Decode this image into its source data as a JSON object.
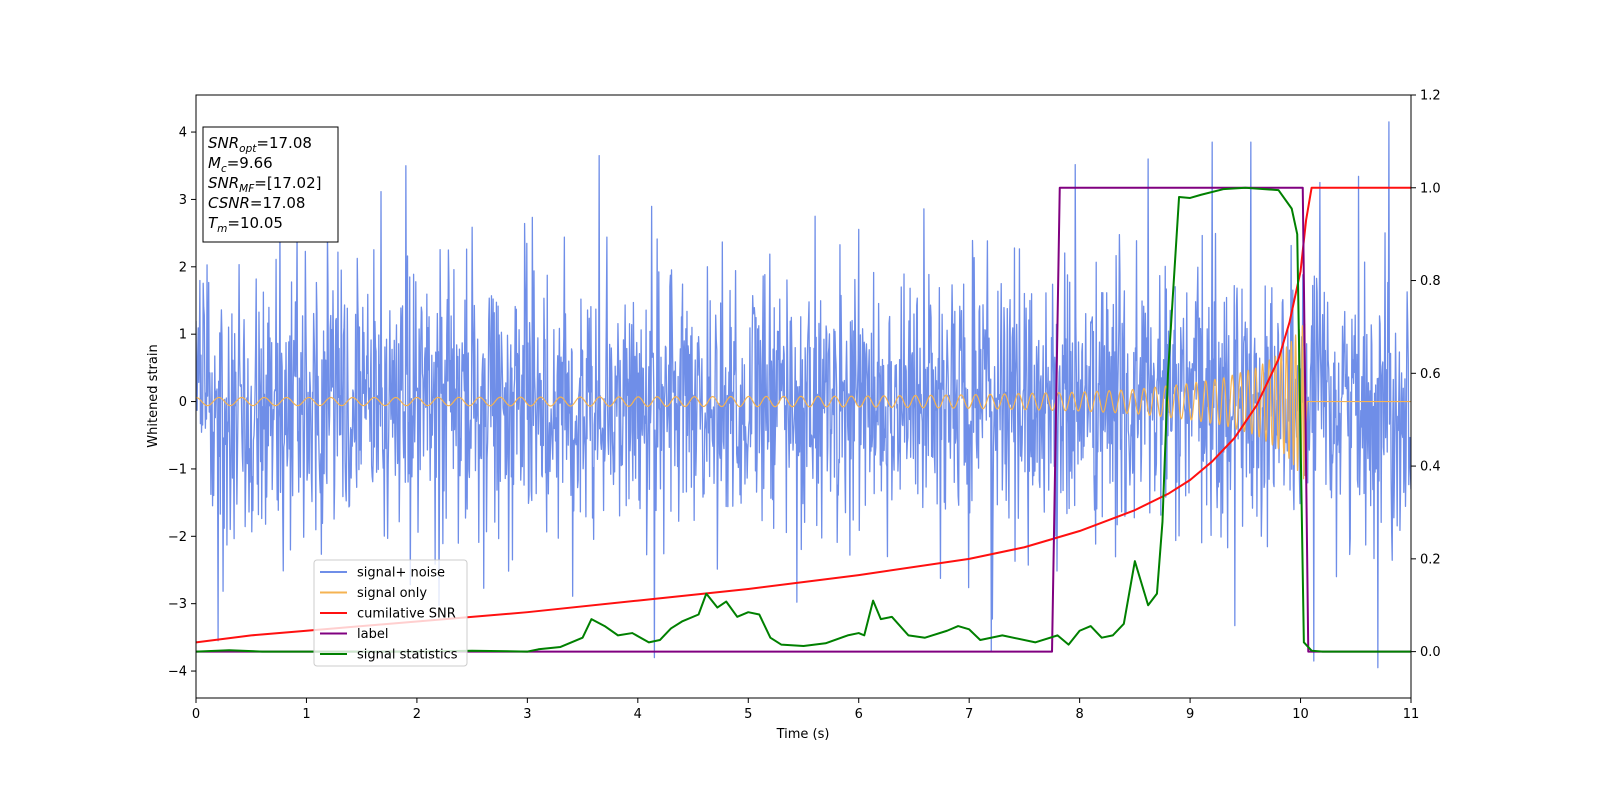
{
  "chart_data": {
    "type": "line",
    "xlabel": "Time (s)",
    "ylabel": "Whitened strain",
    "xlim": [
      0,
      11
    ],
    "ylim": [
      -4.4,
      4.55
    ],
    "ylim_right": [
      -0.1,
      1.2
    ],
    "xticks": [
      0,
      1,
      2,
      3,
      4,
      5,
      6,
      7,
      8,
      9,
      10,
      11
    ],
    "yticks": [
      -4,
      -3,
      -2,
      -1,
      0,
      1,
      2,
      3,
      4
    ],
    "yticks_right": [
      0.0,
      0.2,
      0.4,
      0.6,
      0.8,
      1.0,
      1.2
    ],
    "grid": false,
    "legend_placement": "lower-left",
    "annotation_box": {
      "placement": "upper-left",
      "lines": [
        {
          "main": "SNR",
          "sub": "opt",
          "value": "=17.08"
        },
        {
          "main": "M",
          "sub": "c",
          "value": "=9.66"
        },
        {
          "main": "SNR",
          "sub": "MF",
          "value": "=[17.02]"
        },
        {
          "main": "CSNR",
          "sub": "",
          "value": "=17.08"
        },
        {
          "main": "T",
          "sub": "m",
          "value": "=10.05"
        }
      ]
    },
    "series": [
      {
        "name": "signal+ noise",
        "color": "#6f8ee8",
        "axis": "left",
        "kind": "noise",
        "sample_rate_hz": 200,
        "x_range": [
          0,
          11
        ],
        "noise_std": 1.0,
        "extremes": [
          {
            "x": 4.15,
            "y": -3.8
          },
          {
            "x": 10.8,
            "y": 4.15
          },
          {
            "x": 10.7,
            "y": -3.95
          },
          {
            "x": 1.9,
            "y": 3.5
          },
          {
            "x": 3.65,
            "y": 3.65
          },
          {
            "x": 9.55,
            "y": 3.85
          },
          {
            "x": 9.2,
            "y": 3.85
          },
          {
            "x": 10.12,
            "y": -3.85
          },
          {
            "x": 0.2,
            "y": -3.55
          },
          {
            "x": 7.2,
            "y": -3.7
          },
          {
            "x": 8.62,
            "y": 3.6
          }
        ]
      },
      {
        "name": "signal only",
        "color": "#f5b352",
        "axis": "left",
        "kind": "chirp",
        "x_range": [
          0,
          11
        ],
        "coalescence_time": 10.05,
        "start_frequency_hz": 4.8,
        "amplitude_points": {
          "x": [
            0,
            2,
            4,
            6,
            7,
            8,
            8.5,
            9,
            9.3,
            9.6,
            9.8,
            9.9,
            10.0,
            10.05,
            10.06,
            11
          ],
          "y": [
            0.06,
            0.06,
            0.07,
            0.08,
            0.1,
            0.14,
            0.18,
            0.27,
            0.35,
            0.5,
            0.7,
            0.85,
            1.1,
            1.2,
            0,
            0
          ]
        }
      },
      {
        "name": "cumilative SNR",
        "color": "#ff1010",
        "axis": "right",
        "x": [
          0,
          0.5,
          1,
          2,
          3,
          4,
          5,
          6,
          7,
          7.5,
          8,
          8.5,
          8.8,
          9.0,
          9.2,
          9.4,
          9.6,
          9.8,
          9.9,
          10.0,
          10.05,
          10.1,
          11
        ],
        "y": [
          0.02,
          0.035,
          0.045,
          0.065,
          0.085,
          0.11,
          0.135,
          0.165,
          0.2,
          0.225,
          0.26,
          0.305,
          0.34,
          0.37,
          0.41,
          0.46,
          0.53,
          0.63,
          0.71,
          0.82,
          0.93,
          1.0,
          1.0
        ]
      },
      {
        "name": "label",
        "color": "#800080",
        "axis": "right",
        "x": [
          0,
          7.75,
          7.82,
          10.02,
          10.07,
          11
        ],
        "y": [
          0,
          0,
          1.0,
          1.0,
          0,
          0
        ]
      },
      {
        "name": "signal statistics",
        "color": "#008000",
        "axis": "right",
        "x": [
          0,
          0.3,
          0.6,
          1,
          2,
          2.5,
          3,
          3.1,
          3.3,
          3.5,
          3.58,
          3.7,
          3.82,
          3.95,
          4.1,
          4.2,
          4.3,
          4.4,
          4.55,
          4.62,
          4.72,
          4.8,
          4.9,
          5.0,
          5.1,
          5.2,
          5.3,
          5.5,
          5.7,
          5.9,
          6.0,
          6.05,
          6.13,
          6.2,
          6.3,
          6.45,
          6.6,
          6.8,
          6.9,
          7.0,
          7.1,
          7.3,
          7.6,
          7.8,
          7.9,
          8.0,
          8.1,
          8.2,
          8.3,
          8.4,
          8.5,
          8.62,
          8.7,
          8.75,
          8.8,
          8.9,
          9.0,
          9.1,
          9.3,
          9.5,
          9.8,
          9.92,
          9.97,
          10.03,
          10.1,
          10.2,
          11
        ],
        "y": [
          0.0,
          0.003,
          0.0,
          0.0,
          0.0,
          0.002,
          0.0,
          0.005,
          0.01,
          0.03,
          0.07,
          0.055,
          0.035,
          0.04,
          0.02,
          0.025,
          0.05,
          0.065,
          0.08,
          0.125,
          0.095,
          0.108,
          0.075,
          0.085,
          0.08,
          0.03,
          0.015,
          0.012,
          0.018,
          0.035,
          0.04,
          0.035,
          0.11,
          0.07,
          0.075,
          0.035,
          0.03,
          0.045,
          0.055,
          0.048,
          0.025,
          0.035,
          0.02,
          0.035,
          0.015,
          0.045,
          0.055,
          0.03,
          0.035,
          0.06,
          0.195,
          0.1,
          0.125,
          0.28,
          0.6,
          0.98,
          0.978,
          0.985,
          0.997,
          1.0,
          0.995,
          0.955,
          0.9,
          0.02,
          0.002,
          0.0,
          0.0
        ]
      }
    ]
  }
}
